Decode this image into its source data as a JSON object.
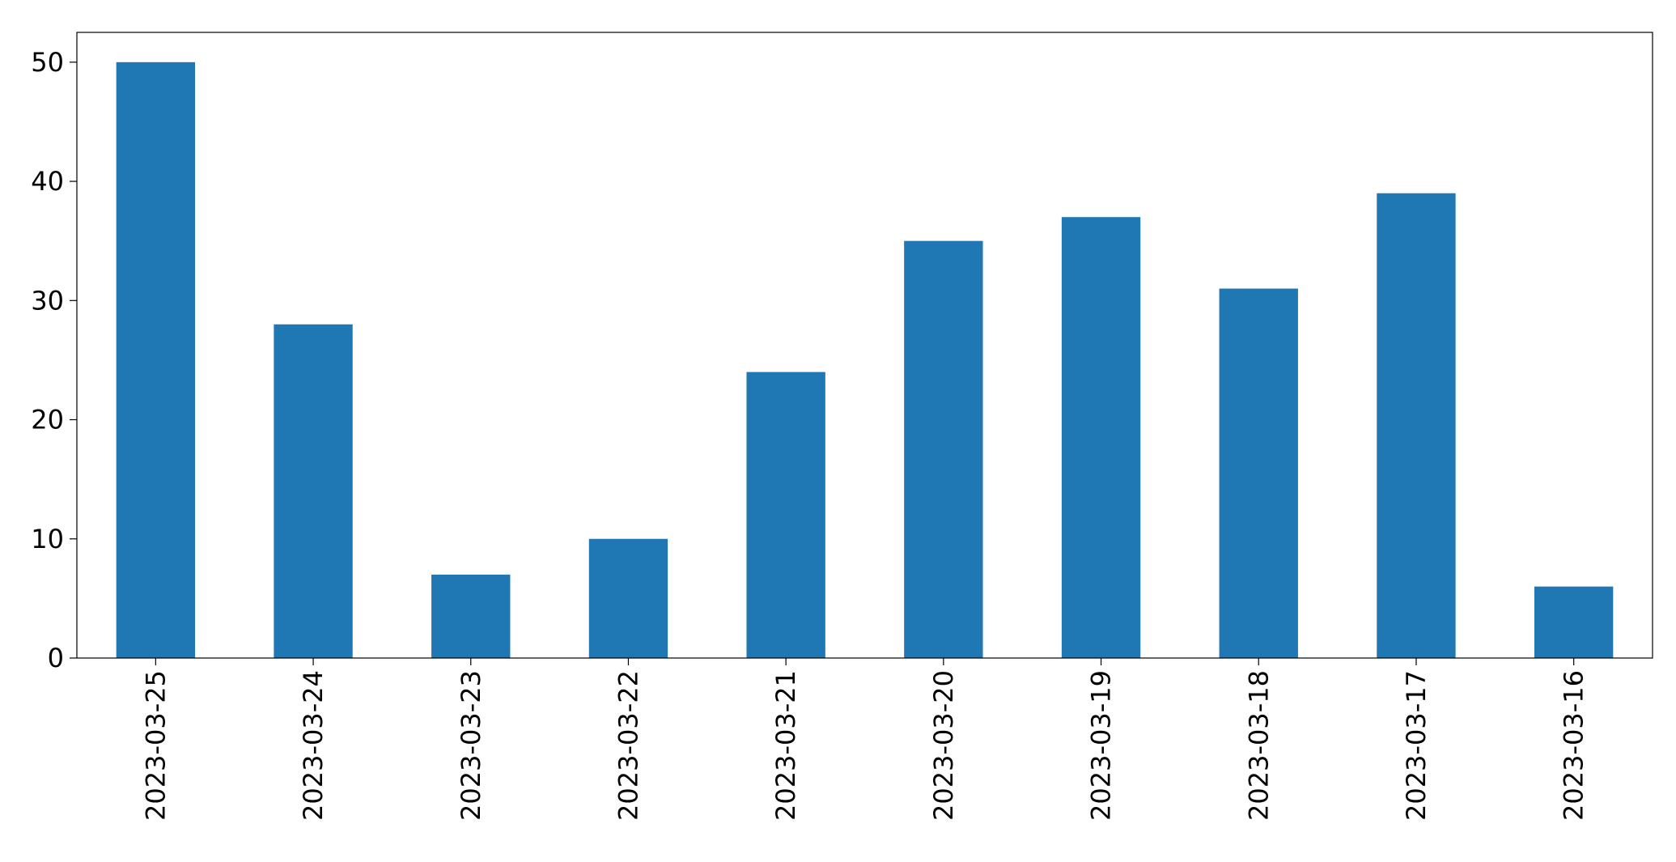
{
  "chart_data": {
    "type": "bar",
    "title": "",
    "xlabel": "",
    "ylabel": "",
    "categories": [
      "2023-03-25",
      "2023-03-24",
      "2023-03-23",
      "2023-03-22",
      "2023-03-21",
      "2023-03-20",
      "2023-03-19",
      "2023-03-18",
      "2023-03-17",
      "2023-03-16"
    ],
    "values": [
      50,
      28,
      7,
      10,
      24,
      35,
      37,
      31,
      39,
      6
    ],
    "ylim": [
      0,
      52.5
    ],
    "yticks": [
      0,
      10,
      20,
      30,
      40,
      50
    ],
    "bar_color": "#1f77b4",
    "grid": false,
    "legend": false,
    "x_tick_rotation": "vertical"
  }
}
